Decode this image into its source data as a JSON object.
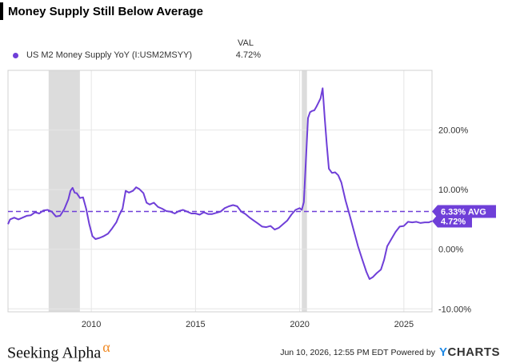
{
  "title": "Money Supply Still Below Average",
  "legend": {
    "header": "VAL",
    "series_name": "US M2 Money Supply YoY (I:USM2MSYY)",
    "series_value": "4.72%"
  },
  "footer": {
    "brand": "Seeking Alpha",
    "brand_mark": "α",
    "timestamp": "Jun 10, 2026, 12:55 PM EDT",
    "powered_by": "Powered by",
    "provider_mark": "Y",
    "provider_rest": "CHARTS"
  },
  "colors": {
    "series": "#6f3fd8",
    "recession_band": "#dcdcdc",
    "grid": "#e6e6e6",
    "brand_alpha": "#f08a24"
  },
  "chart_data": {
    "type": "line",
    "title": "Money Supply Still Below Average",
    "xlim": [
      2006.0,
      2026.35
    ],
    "ylim": [
      -10.5,
      30.0
    ],
    "x_ticks": [
      {
        "value": 2010,
        "label": "2010"
      },
      {
        "value": 2015,
        "label": "2015"
      },
      {
        "value": 2020,
        "label": "2020"
      },
      {
        "value": 2025,
        "label": "2025"
      }
    ],
    "y_ticks": [
      {
        "value": 20,
        "label": "20.00%"
      },
      {
        "value": 10,
        "label": "10.00%"
      },
      {
        "value": 0,
        "label": "0.00%"
      },
      {
        "value": -10,
        "label": "-10.00%"
      }
    ],
    "recessions": [
      [
        2007.95,
        2009.45
      ],
      [
        2020.1,
        2020.35
      ]
    ],
    "average": {
      "value": 6.33,
      "label": "6.33% AVG"
    },
    "last_value": {
      "value": 4.72,
      "label": "4.72%"
    },
    "series": [
      {
        "name": "US M2 Money Supply YoY (I:USM2MSYY)",
        "points": [
          [
            2006.0,
            4.2
          ],
          [
            2006.1,
            5.0
          ],
          [
            2006.3,
            5.3
          ],
          [
            2006.5,
            5.0
          ],
          [
            2006.7,
            5.3
          ],
          [
            2006.9,
            5.6
          ],
          [
            2007.1,
            5.7
          ],
          [
            2007.3,
            6.2
          ],
          [
            2007.5,
            6.0
          ],
          [
            2007.7,
            6.5
          ],
          [
            2007.9,
            6.6
          ],
          [
            2008.1,
            6.3
          ],
          [
            2008.3,
            5.5
          ],
          [
            2008.5,
            5.6
          ],
          [
            2008.7,
            6.7
          ],
          [
            2008.9,
            8.4
          ],
          [
            2009.0,
            9.8
          ],
          [
            2009.1,
            10.3
          ],
          [
            2009.2,
            9.5
          ],
          [
            2009.3,
            9.4
          ],
          [
            2009.45,
            8.6
          ],
          [
            2009.6,
            8.7
          ],
          [
            2009.75,
            6.8
          ],
          [
            2009.9,
            4.2
          ],
          [
            2010.05,
            2.2
          ],
          [
            2010.2,
            1.7
          ],
          [
            2010.4,
            1.9
          ],
          [
            2010.6,
            2.2
          ],
          [
            2010.8,
            2.6
          ],
          [
            2011.0,
            3.5
          ],
          [
            2011.2,
            4.5
          ],
          [
            2011.35,
            5.8
          ],
          [
            2011.5,
            6.8
          ],
          [
            2011.65,
            9.8
          ],
          [
            2011.8,
            9.5
          ],
          [
            2012.0,
            9.8
          ],
          [
            2012.15,
            10.4
          ],
          [
            2012.3,
            10.1
          ],
          [
            2012.5,
            9.4
          ],
          [
            2012.65,
            7.8
          ],
          [
            2012.8,
            7.5
          ],
          [
            2013.0,
            7.8
          ],
          [
            2013.2,
            7.1
          ],
          [
            2013.4,
            6.8
          ],
          [
            2013.6,
            6.4
          ],
          [
            2013.8,
            6.3
          ],
          [
            2014.0,
            6.0
          ],
          [
            2014.2,
            6.4
          ],
          [
            2014.4,
            6.6
          ],
          [
            2014.6,
            6.3
          ],
          [
            2014.8,
            6.0
          ],
          [
            2015.0,
            6.0
          ],
          [
            2015.2,
            5.8
          ],
          [
            2015.4,
            6.2
          ],
          [
            2015.6,
            5.9
          ],
          [
            2015.8,
            5.9
          ],
          [
            2016.0,
            6.1
          ],
          [
            2016.2,
            6.3
          ],
          [
            2016.4,
            6.9
          ],
          [
            2016.6,
            7.2
          ],
          [
            2016.8,
            7.4
          ],
          [
            2017.0,
            7.2
          ],
          [
            2017.2,
            6.3
          ],
          [
            2017.4,
            5.9
          ],
          [
            2017.6,
            5.3
          ],
          [
            2017.8,
            4.8
          ],
          [
            2018.0,
            4.3
          ],
          [
            2018.2,
            3.8
          ],
          [
            2018.4,
            3.7
          ],
          [
            2018.6,
            3.9
          ],
          [
            2018.8,
            3.3
          ],
          [
            2019.0,
            3.6
          ],
          [
            2019.2,
            4.2
          ],
          [
            2019.4,
            4.8
          ],
          [
            2019.6,
            5.8
          ],
          [
            2019.8,
            6.6
          ],
          [
            2020.0,
            6.9
          ],
          [
            2020.1,
            6.6
          ],
          [
            2020.2,
            7.9
          ],
          [
            2020.3,
            15.0
          ],
          [
            2020.4,
            22.0
          ],
          [
            2020.5,
            23.0
          ],
          [
            2020.6,
            23.2
          ],
          [
            2020.7,
            23.3
          ],
          [
            2020.8,
            23.9
          ],
          [
            2020.9,
            24.6
          ],
          [
            2021.0,
            25.3
          ],
          [
            2021.1,
            27.0
          ],
          [
            2021.2,
            22.0
          ],
          [
            2021.3,
            17.5
          ],
          [
            2021.4,
            13.5
          ],
          [
            2021.55,
            12.8
          ],
          [
            2021.7,
            12.9
          ],
          [
            2021.85,
            12.4
          ],
          [
            2022.0,
            11.2
          ],
          [
            2022.2,
            8.2
          ],
          [
            2022.4,
            5.7
          ],
          [
            2022.6,
            3.1
          ],
          [
            2022.8,
            0.5
          ],
          [
            2023.0,
            -1.7
          ],
          [
            2023.2,
            -3.8
          ],
          [
            2023.35,
            -5.0
          ],
          [
            2023.5,
            -4.7
          ],
          [
            2023.7,
            -4.0
          ],
          [
            2023.9,
            -3.4
          ],
          [
            2024.05,
            -1.8
          ],
          [
            2024.2,
            0.5
          ],
          [
            2024.4,
            1.7
          ],
          [
            2024.6,
            2.9
          ],
          [
            2024.8,
            3.8
          ],
          [
            2025.0,
            3.9
          ],
          [
            2025.2,
            4.6
          ],
          [
            2025.4,
            4.5
          ],
          [
            2025.6,
            4.6
          ],
          [
            2025.8,
            4.4
          ],
          [
            2026.0,
            4.5
          ],
          [
            2026.2,
            4.5
          ],
          [
            2026.35,
            4.72
          ]
        ]
      }
    ]
  }
}
